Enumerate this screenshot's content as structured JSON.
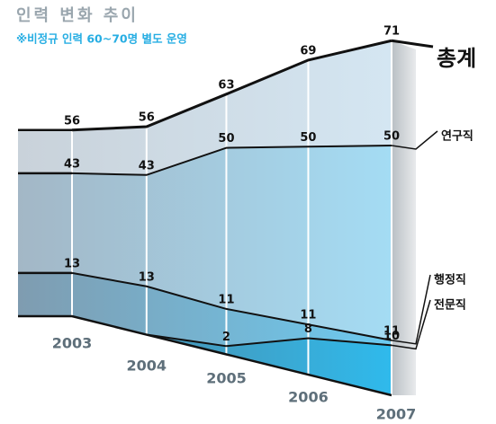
{
  "chart_data": {
    "type": "line",
    "title": "인력 변화 추이",
    "subtitle": "※비정규 인력 60~70명 별도 운영",
    "categories": [
      "2003",
      "2004",
      "2005",
      "2006",
      "2007"
    ],
    "series": [
      {
        "name": "총계",
        "color": "#111111",
        "values": [
          56,
          56,
          63,
          69,
          71
        ]
      },
      {
        "name": "연구직",
        "color": "#111111",
        "values": [
          43,
          43,
          50,
          50,
          50
        ]
      },
      {
        "name": "행정직",
        "color": "#111111",
        "values": [
          13,
          13,
          11,
          11,
          11
        ]
      },
      {
        "name": "전문직",
        "color": "#111111",
        "values": [
          null,
          null,
          2,
          8,
          10
        ]
      }
    ]
  }
}
